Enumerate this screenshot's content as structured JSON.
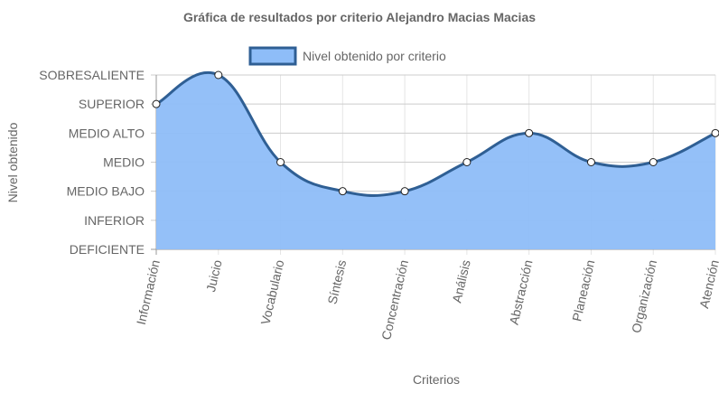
{
  "chart_data": {
    "type": "area",
    "title": "Gráfica de resultados por criterio Alejandro Macias Macias",
    "xlabel": "Criterios",
    "ylabel": "Nivel obtenido",
    "categories": [
      "Información",
      "Juicio",
      "Vocabulario",
      "Síntesis",
      "Concentración",
      "Análisis",
      "Abstracción",
      "Planeación",
      "Organización",
      "Atención"
    ],
    "y_levels": [
      "DEFICIENTE",
      "INFERIOR",
      "MEDIO BAJO",
      "MEDIO",
      "MEDIO ALTO",
      "SUPERIOR",
      "SOBRESALIENTE"
    ],
    "ylim": [
      0,
      6
    ],
    "grid": true,
    "legend_position": "top",
    "series": [
      {
        "name": "Nivel obtenido por criterio",
        "values": [
          5,
          6,
          3,
          2,
          2,
          3,
          4,
          3,
          3,
          4
        ],
        "fill_color": "#8ebdf8",
        "line_color": "#2f5f94"
      }
    ]
  }
}
